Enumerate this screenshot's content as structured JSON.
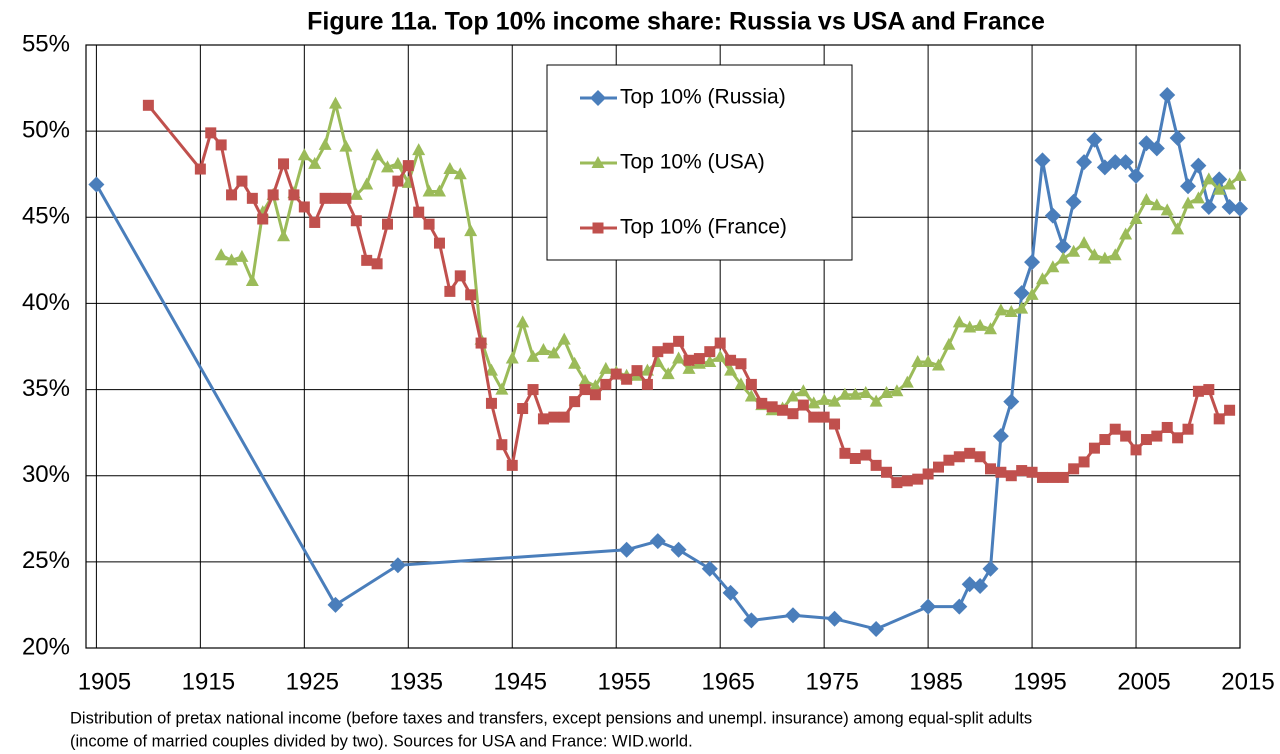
{
  "chart_data": {
    "type": "line",
    "title": "Figure 11a. Top 10% income share: Russia vs USA and France",
    "caption": [
      "Distribution of pretax national income (before taxes and transfers, except pensions and unempl. insurance) among equal-split adults",
      "(income of married couples divided by two). Sources for USA and France: WID.world."
    ],
    "xlim": [
      1904,
      2015
    ],
    "xticks": [
      1905,
      1915,
      1925,
      1935,
      1945,
      1955,
      1965,
      1975,
      1985,
      1995,
      2005,
      2015
    ],
    "ylim": [
      20,
      55
    ],
    "yticks": [
      {
        "value": 20,
        "label": "20%"
      },
      {
        "value": 25,
        "label": "25%"
      },
      {
        "value": 30,
        "label": "30%"
      },
      {
        "value": 35,
        "label": "35%"
      },
      {
        "value": 40,
        "label": "40%"
      },
      {
        "value": 45,
        "label": "45%"
      },
      {
        "value": 50,
        "label": "50%"
      },
      {
        "value": 55,
        "label": "55%"
      }
    ],
    "grid": true,
    "legend": "top",
    "series": [
      {
        "name": "Top 10% (Russia)",
        "color": "#4a7ebb",
        "marker": "diamond",
        "x": [
          1905,
          1928,
          1934,
          1956,
          1959,
          1961,
          1964,
          1966,
          1968,
          1972,
          1976,
          1980,
          1985,
          1988,
          1989,
          1990,
          1991,
          1992,
          1993,
          1994,
          1995,
          1996,
          1997,
          1998,
          1999,
          2000,
          2001,
          2002,
          2003,
          2004,
          2005,
          2006,
          2007,
          2008,
          2009,
          2010,
          2011,
          2012,
          2013,
          2014,
          2015
        ],
        "values": [
          46.9,
          22.5,
          24.8,
          25.7,
          26.2,
          25.7,
          24.6,
          23.2,
          21.6,
          21.9,
          21.7,
          21.1,
          22.4,
          22.4,
          23.7,
          23.6,
          24.6,
          32.3,
          34.3,
          40.6,
          42.4,
          48.3,
          45.1,
          43.3,
          45.9,
          48.2,
          49.5,
          47.9,
          48.2,
          48.2,
          47.4,
          49.3,
          49.0,
          52.1,
          49.6,
          46.8,
          48.0,
          45.6,
          47.2,
          45.6,
          45.5
        ]
      },
      {
        "name": "Top 10% (USA)",
        "color": "#9bbb59",
        "marker": "triangle",
        "x": [
          1917,
          1918,
          1919,
          1920,
          1921,
          1922,
          1923,
          1924,
          1925,
          1926,
          1927,
          1928,
          1929,
          1930,
          1931,
          1932,
          1933,
          1934,
          1935,
          1936,
          1937,
          1938,
          1939,
          1940,
          1941,
          1942,
          1943,
          1944,
          1945,
          1946,
          1947,
          1948,
          1949,
          1950,
          1951,
          1952,
          1953,
          1954,
          1955,
          1956,
          1957,
          1958,
          1959,
          1960,
          1961,
          1962,
          1963,
          1964,
          1965,
          1966,
          1967,
          1968,
          1969,
          1970,
          1971,
          1972,
          1973,
          1974,
          1975,
          1976,
          1977,
          1978,
          1979,
          1980,
          1981,
          1982,
          1983,
          1984,
          1985,
          1986,
          1987,
          1988,
          1989,
          1990,
          1991,
          1992,
          1993,
          1994,
          1995,
          1996,
          1997,
          1998,
          1999,
          2000,
          2001,
          2002,
          2003,
          2004,
          2005,
          2006,
          2007,
          2008,
          2009,
          2010,
          2011,
          2012,
          2013,
          2014,
          2015
        ],
        "values": [
          42.8,
          42.5,
          42.7,
          41.3,
          45.3,
          46.3,
          43.9,
          46.4,
          48.6,
          48.1,
          49.2,
          51.6,
          49.1,
          46.3,
          46.9,
          48.6,
          47.9,
          48.1,
          47.0,
          48.9,
          46.5,
          46.5,
          47.8,
          47.5,
          44.2,
          37.9,
          36.1,
          35.0,
          36.8,
          38.9,
          36.9,
          37.3,
          37.1,
          37.9,
          36.5,
          35.5,
          35.2,
          36.2,
          36.0,
          35.8,
          35.8,
          36.1,
          36.6,
          35.9,
          36.8,
          36.2,
          36.5,
          36.6,
          36.9,
          36.1,
          35.3,
          34.6,
          34.1,
          33.8,
          33.9,
          34.6,
          34.9,
          34.2,
          34.4,
          34.3,
          34.7,
          34.7,
          34.8,
          34.3,
          34.8,
          34.9,
          35.4,
          36.6,
          36.6,
          36.4,
          37.6,
          38.9,
          38.6,
          38.7,
          38.5,
          39.6,
          39.5,
          39.7,
          40.5,
          41.4,
          42.1,
          42.6,
          43.0,
          43.5,
          42.8,
          42.6,
          42.8,
          44.0,
          44.9,
          46.0,
          45.7,
          45.4,
          44.3,
          45.8,
          46.1,
          47.2,
          46.6,
          46.9,
          47.4
        ]
      },
      {
        "name": "Top 10% (France)",
        "color": "#c0504d",
        "marker": "square",
        "x": [
          1910,
          1915,
          1916,
          1917,
          1918,
          1919,
          1920,
          1921,
          1922,
          1923,
          1924,
          1925,
          1926,
          1927,
          1928,
          1929,
          1930,
          1931,
          1932,
          1933,
          1934,
          1935,
          1936,
          1937,
          1938,
          1939,
          1940,
          1941,
          1942,
          1943,
          1944,
          1945,
          1946,
          1947,
          1948,
          1949,
          1950,
          1951,
          1952,
          1953,
          1954,
          1955,
          1956,
          1957,
          1958,
          1959,
          1960,
          1961,
          1962,
          1963,
          1964,
          1965,
          1966,
          1967,
          1968,
          1969,
          1970,
          1971,
          1972,
          1973,
          1974,
          1975,
          1976,
          1977,
          1978,
          1979,
          1980,
          1981,
          1982,
          1983,
          1984,
          1985,
          1986,
          1987,
          1988,
          1989,
          1990,
          1991,
          1992,
          1993,
          1994,
          1995,
          1996,
          1997,
          1998,
          1999,
          2000,
          2001,
          2002,
          2003,
          2004,
          2005,
          2006,
          2007,
          2008,
          2009,
          2010,
          2011,
          2012,
          2013,
          2014
        ],
        "values": [
          51.5,
          47.8,
          49.9,
          49.2,
          46.3,
          47.1,
          46.1,
          44.9,
          46.3,
          48.1,
          46.3,
          45.6,
          44.7,
          46.1,
          46.1,
          46.1,
          44.8,
          42.5,
          42.3,
          44.6,
          47.1,
          48.0,
          45.3,
          44.6,
          43.5,
          40.7,
          41.6,
          40.5,
          37.7,
          34.2,
          31.8,
          30.6,
          33.9,
          35.0,
          33.3,
          33.4,
          33.4,
          34.3,
          35.0,
          34.7,
          35.3,
          35.9,
          35.6,
          36.1,
          35.3,
          37.2,
          37.4,
          37.8,
          36.7,
          36.8,
          37.2,
          37.7,
          36.7,
          36.5,
          35.3,
          34.2,
          34.0,
          33.8,
          33.6,
          34.1,
          33.4,
          33.4,
          33.0,
          31.3,
          31.0,
          31.2,
          30.6,
          30.2,
          29.6,
          29.7,
          29.8,
          30.1,
          30.5,
          30.9,
          31.1,
          31.3,
          31.1,
          30.4,
          30.2,
          30.0,
          30.3,
          30.2,
          29.9,
          29.9,
          29.9,
          30.4,
          30.8,
          31.6,
          32.1,
          32.7,
          32.3,
          31.5,
          32.1,
          32.3,
          32.8,
          32.2,
          32.7,
          34.9,
          35.0,
          33.3,
          33.8
        ]
      }
    ]
  }
}
